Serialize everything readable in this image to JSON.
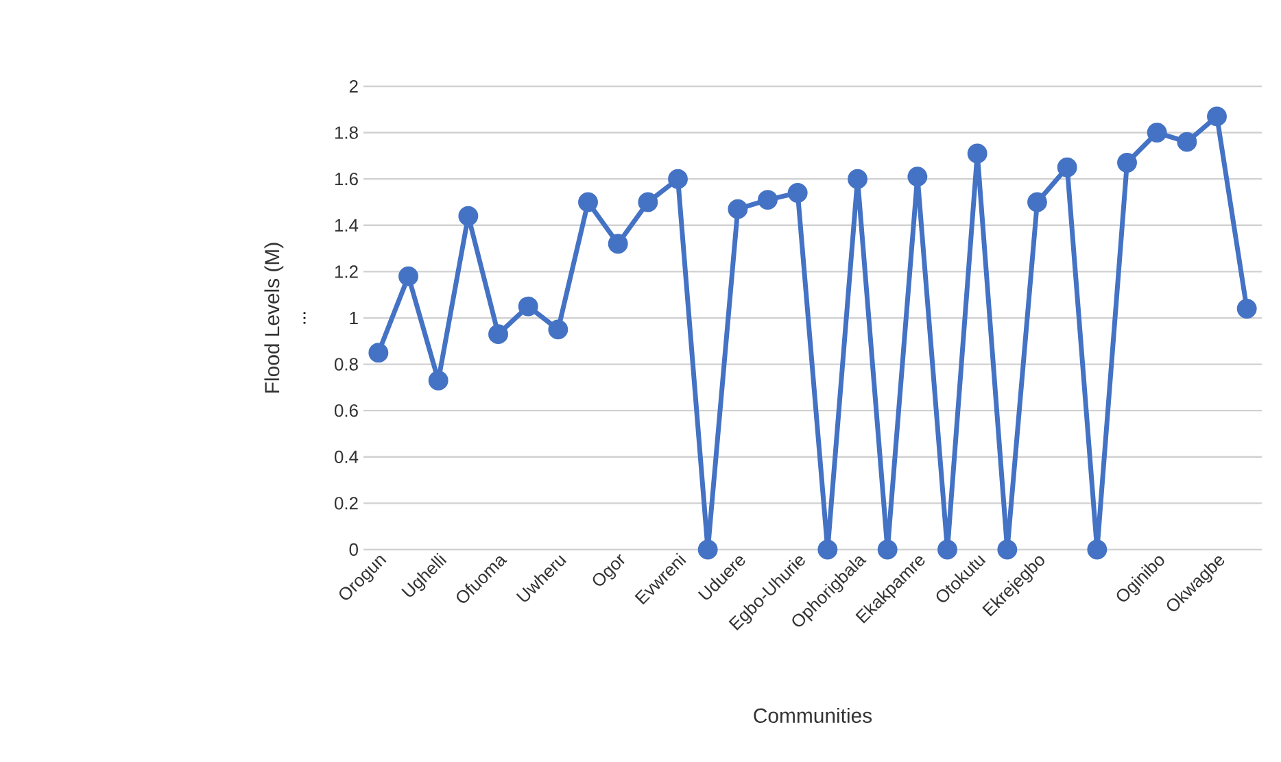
{
  "chart_data": {
    "type": "line",
    "xlabel": "Communities",
    "ylabel": "Flood Levels (M)",
    "categories": [
      "Orogun",
      null,
      "Ughelli",
      null,
      "Ofuoma",
      null,
      "Uwheru",
      null,
      "Ogor",
      null,
      "Evwreni",
      null,
      "Uduere",
      null,
      "Egbo-Uhurie",
      null,
      "Ophorigbala",
      null,
      "Ekakpamre",
      null,
      "Otokutu",
      null,
      "Ekrejegbo",
      null,
      null,
      null,
      "Oginibo",
      null,
      "Okwagbe",
      null
    ],
    "values": [
      0.85,
      1.18,
      0.73,
      1.44,
      0.93,
      1.05,
      0.95,
      1.5,
      1.32,
      1.5,
      1.6,
      0,
      1.47,
      1.51,
      1.54,
      0,
      1.6,
      0,
      1.61,
      0,
      1.71,
      0,
      1.5,
      1.65,
      0,
      1.67,
      1.8,
      1.76,
      1.87,
      1.04
    ],
    "color": "#4472c4",
    "marker": "circle",
    "line_style": "solid",
    "ylim": [
      0,
      2
    ],
    "yticks": [
      0,
      0.2,
      0.4,
      0.6,
      0.8,
      1,
      1.2,
      1.4,
      1.6,
      1.8,
      2
    ],
    "grid": "y",
    "annotations": [
      "..."
    ]
  }
}
